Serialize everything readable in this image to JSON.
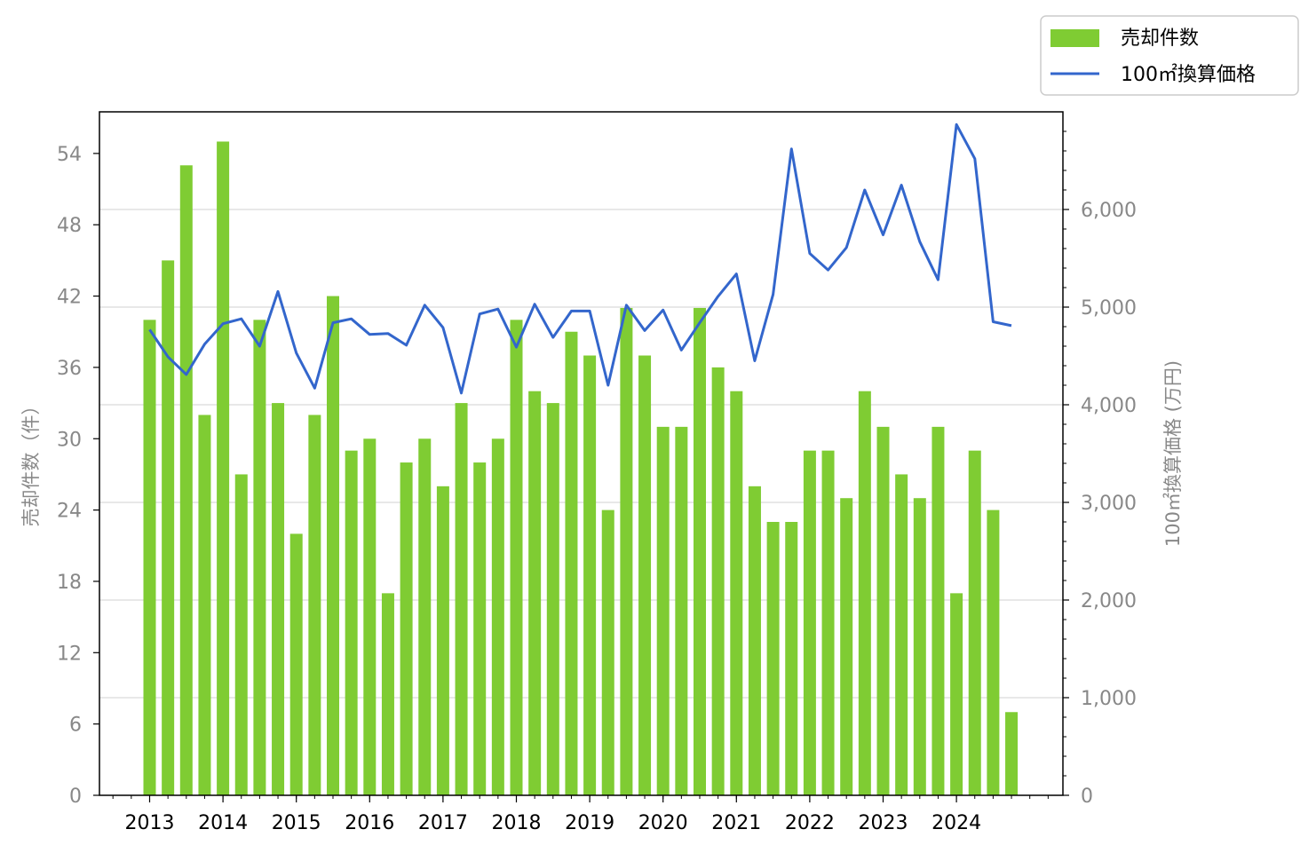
{
  "chart_data": {
    "type": "bar",
    "legend_position": "top-right",
    "grid": "horizontal (right axis)",
    "x_axis": {
      "tick_labels": [
        "2013",
        "2014",
        "2015",
        "2016",
        "2017",
        "2018",
        "2019",
        "2020",
        "2021",
        "2022",
        "2023",
        "2024"
      ]
    },
    "y_left": {
      "label": "売却件数（件）",
      "ylim": [
        0,
        57.5
      ],
      "ticks": [
        0,
        6,
        12,
        18,
        24,
        30,
        36,
        42,
        48,
        54
      ],
      "tick_labels": [
        "0",
        "6",
        "12",
        "18",
        "24",
        "30",
        "36",
        "42",
        "48",
        "54"
      ]
    },
    "y_right": {
      "label": "100㎡換算価格 (万円)",
      "ylim": [
        0,
        7000
      ],
      "ticks": [
        0,
        1000,
        2000,
        3000,
        4000,
        5000,
        6000
      ],
      "tick_labels": [
        "0",
        "1,000",
        "2,000",
        "3,000",
        "4,000",
        "5,000",
        "6,000"
      ]
    },
    "series": [
      {
        "name": "売却件数",
        "type": "bar",
        "axis": "left",
        "color": "#7fcc33",
        "values": [
          40,
          45,
          53,
          32,
          55,
          27,
          40,
          33,
          22,
          32,
          42,
          29,
          30,
          17,
          28,
          30,
          26,
          33,
          28,
          30,
          40,
          34,
          33,
          39,
          37,
          24,
          41,
          37,
          31,
          31,
          41,
          36,
          34,
          26,
          23,
          23,
          29,
          29,
          25,
          34,
          31,
          27,
          25,
          31,
          17,
          29,
          24,
          7
        ]
      },
      {
        "name": "100㎡換算価格",
        "type": "line",
        "axis": "right",
        "color": "#3366cc",
        "values": [
          4770,
          4490,
          4310,
          4620,
          4830,
          4880,
          4600,
          5160,
          4530,
          4170,
          4840,
          4880,
          4720,
          4730,
          4610,
          5020,
          4790,
          4120,
          4930,
          4980,
          4590,
          5030,
          4690,
          4960,
          4960,
          4200,
          5020,
          4760,
          4970,
          4560,
          4840,
          5110,
          5340,
          4450,
          5130,
          6620,
          5550,
          5380,
          5610,
          6200,
          5740,
          6250,
          5670,
          5280,
          6870,
          6520,
          4850,
          4810
        ]
      }
    ]
  }
}
